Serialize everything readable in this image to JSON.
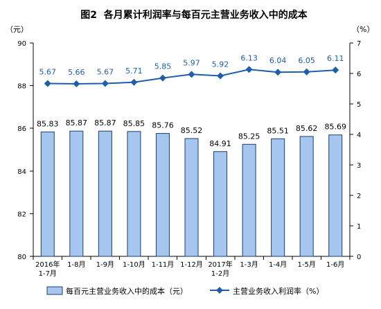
{
  "chart_data": {
    "type": "bar",
    "title": "图2  各月累计利润率与每百元主营业务收入中的成本",
    "categories": [
      [
        "2016年",
        "1-7月"
      ],
      [
        "1-8月"
      ],
      [
        "1-9月"
      ],
      [
        "1-10月"
      ],
      [
        "1-11月"
      ],
      [
        "1-12月"
      ],
      [
        "2017年",
        "1-2月"
      ],
      [
        "1-3月"
      ],
      [
        "1-4月"
      ],
      [
        "1-5月"
      ],
      [
        "1-6月"
      ]
    ],
    "y_left": {
      "unit": "（元）",
      "range": [
        80,
        90
      ],
      "ticks": [
        80,
        82,
        84,
        86,
        88,
        90
      ]
    },
    "y_right": {
      "unit": "（%）",
      "range": [
        0,
        7
      ],
      "ticks": [
        0,
        1,
        2,
        3,
        4,
        5,
        6,
        7
      ]
    },
    "series": [
      {
        "name": "每百元主营业务收入中的成本（元）",
        "type": "bar",
        "y_axis": "left",
        "color": "#a5c6ee",
        "stroke": "#1d3d6e",
        "values": [
          85.83,
          85.87,
          85.87,
          85.85,
          85.76,
          85.52,
          84.91,
          85.25,
          85.51,
          85.62,
          85.69
        ]
      },
      {
        "name": "主营业务收入利润率（%）",
        "type": "line",
        "y_axis": "right",
        "color": "#1f5ea8",
        "values": [
          5.67,
          5.66,
          5.67,
          5.71,
          5.85,
          5.97,
          5.92,
          6.13,
          6.04,
          6.05,
          6.11
        ]
      }
    ],
    "grid": false,
    "legend": "bottom"
  }
}
